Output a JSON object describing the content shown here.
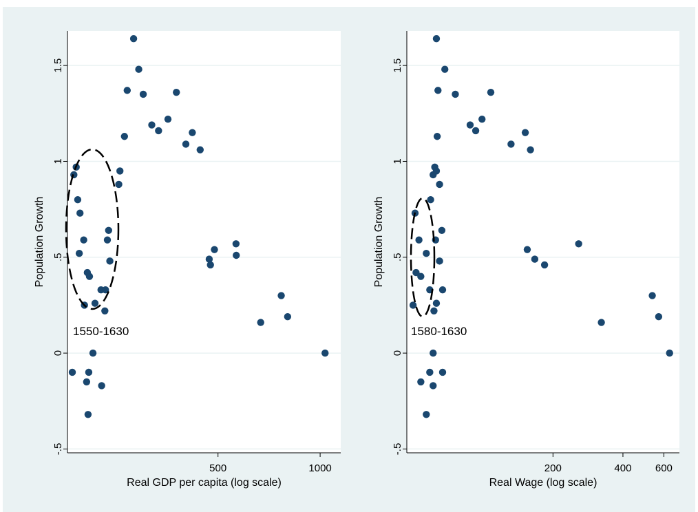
{
  "colors": {
    "background": "#eaf2f3",
    "plot_area": "#ffffff",
    "marker": "#1a476f",
    "grid": "#eaf2f3",
    "axis": "#000000"
  },
  "chart_data": [
    {
      "type": "scatter",
      "xlabel": "Real GDP per capita (log scale)",
      "ylabel": "Population Growth",
      "x_scale": "log",
      "x_ticks": [
        500,
        1000
      ],
      "x_tick_labels": [
        "500",
        "1000"
      ],
      "xlim": [
        180,
        1150
      ],
      "ylim": [
        -0.52,
        1.68
      ],
      "y_ticks": [
        -0.5,
        0,
        0.5,
        1,
        1.5
      ],
      "y_tick_labels": [
        "-.5",
        "0",
        ".5",
        "1",
        "1.5"
      ],
      "grid": true,
      "annotation": "1550-1630",
      "points": [
        {
          "x": 186,
          "y": -0.1
        },
        {
          "x": 188,
          "y": 0.93
        },
        {
          "x": 191,
          "y": 0.97
        },
        {
          "x": 193,
          "y": 0.8
        },
        {
          "x": 195,
          "y": 0.52
        },
        {
          "x": 196,
          "y": 0.73
        },
        {
          "x": 201,
          "y": 0.59
        },
        {
          "x": 202,
          "y": 0.25
        },
        {
          "x": 205,
          "y": -0.15
        },
        {
          "x": 206,
          "y": 0.42
        },
        {
          "x": 207,
          "y": -0.32
        },
        {
          "x": 208,
          "y": -0.1
        },
        {
          "x": 209,
          "y": 0.4
        },
        {
          "x": 214,
          "y": 0.0
        },
        {
          "x": 217,
          "y": 0.26
        },
        {
          "x": 226,
          "y": 0.33
        },
        {
          "x": 227,
          "y": -0.17
        },
        {
          "x": 232,
          "y": 0.22
        },
        {
          "x": 233,
          "y": 0.33
        },
        {
          "x": 236,
          "y": 0.59
        },
        {
          "x": 238,
          "y": 0.64
        },
        {
          "x": 240,
          "y": 0.48
        },
        {
          "x": 255,
          "y": 0.88
        },
        {
          "x": 257,
          "y": 0.95
        },
        {
          "x": 265,
          "y": 1.13
        },
        {
          "x": 270,
          "y": 1.37
        },
        {
          "x": 282,
          "y": 1.64
        },
        {
          "x": 292,
          "y": 1.48
        },
        {
          "x": 301,
          "y": 1.35
        },
        {
          "x": 319,
          "y": 1.19
        },
        {
          "x": 334,
          "y": 1.16
        },
        {
          "x": 356,
          "y": 1.22
        },
        {
          "x": 377,
          "y": 1.36
        },
        {
          "x": 402,
          "y": 1.09
        },
        {
          "x": 420,
          "y": 1.15
        },
        {
          "x": 443,
          "y": 1.06
        },
        {
          "x": 471,
          "y": 0.49
        },
        {
          "x": 475,
          "y": 0.46
        },
        {
          "x": 488,
          "y": 0.54
        },
        {
          "x": 565,
          "y": 0.57
        },
        {
          "x": 566,
          "y": 0.51
        },
        {
          "x": 668,
          "y": 0.16
        },
        {
          "x": 768,
          "y": 0.3
        },
        {
          "x": 802,
          "y": 0.19
        },
        {
          "x": 1034,
          "y": 0.0
        }
      ]
    },
    {
      "type": "scatter",
      "xlabel": "Real Wage (log scale)",
      "ylabel": "Population Growth",
      "x_scale": "log",
      "x_ticks": [
        200,
        400,
        600
      ],
      "x_tick_labels": [
        "200",
        "400",
        "600"
      ],
      "xlim": [
        47,
        700
      ],
      "ylim": [
        -0.52,
        1.68
      ],
      "y_ticks": [
        -0.5,
        0,
        0.5,
        1,
        1.5
      ],
      "y_tick_labels": [
        "-.5",
        "0",
        ".5",
        "1",
        "1.5"
      ],
      "grid": true,
      "annotation": "1580-1630",
      "points": [
        {
          "x": 50,
          "y": 0.25
        },
        {
          "x": 51,
          "y": 0.73
        },
        {
          "x": 51.5,
          "y": 0.42
        },
        {
          "x": 53,
          "y": 0.59
        },
        {
          "x": 54,
          "y": 0.4
        },
        {
          "x": 54,
          "y": -0.15
        },
        {
          "x": 57,
          "y": 0.52
        },
        {
          "x": 57,
          "y": -0.32
        },
        {
          "x": 59,
          "y": 0.33
        },
        {
          "x": 59.5,
          "y": 0.8
        },
        {
          "x": 59,
          "y": -0.1
        },
        {
          "x": 61,
          "y": 0.93
        },
        {
          "x": 61,
          "y": 0.0
        },
        {
          "x": 61,
          "y": -0.17
        },
        {
          "x": 61.5,
          "y": 0.22
        },
        {
          "x": 62,
          "y": 0.97
        },
        {
          "x": 62.5,
          "y": 0.59
        },
        {
          "x": 63,
          "y": 0.95
        },
        {
          "x": 63,
          "y": 1.64
        },
        {
          "x": 63,
          "y": 0.26
        },
        {
          "x": 63.5,
          "y": 1.13
        },
        {
          "x": 64,
          "y": 1.37
        },
        {
          "x": 65,
          "y": 0.88
        },
        {
          "x": 65,
          "y": 0.48
        },
        {
          "x": 66.5,
          "y": 0.64
        },
        {
          "x": 67,
          "y": 0.33
        },
        {
          "x": 67,
          "y": -0.1
        },
        {
          "x": 68.5,
          "y": 1.48
        },
        {
          "x": 76,
          "y": 1.35
        },
        {
          "x": 88,
          "y": 1.19
        },
        {
          "x": 93,
          "y": 1.16
        },
        {
          "x": 99,
          "y": 1.22
        },
        {
          "x": 108,
          "y": 1.36
        },
        {
          "x": 132,
          "y": 1.09
        },
        {
          "x": 152,
          "y": 1.15
        },
        {
          "x": 160,
          "y": 1.06
        },
        {
          "x": 155,
          "y": 0.54
        },
        {
          "x": 167,
          "y": 0.49
        },
        {
          "x": 184,
          "y": 0.46
        },
        {
          "x": 258,
          "y": 0.57
        },
        {
          "x": 323,
          "y": 0.16
        },
        {
          "x": 535,
          "y": 0.3
        },
        {
          "x": 570,
          "y": 0.19
        },
        {
          "x": 635,
          "y": 0.0
        }
      ]
    }
  ]
}
